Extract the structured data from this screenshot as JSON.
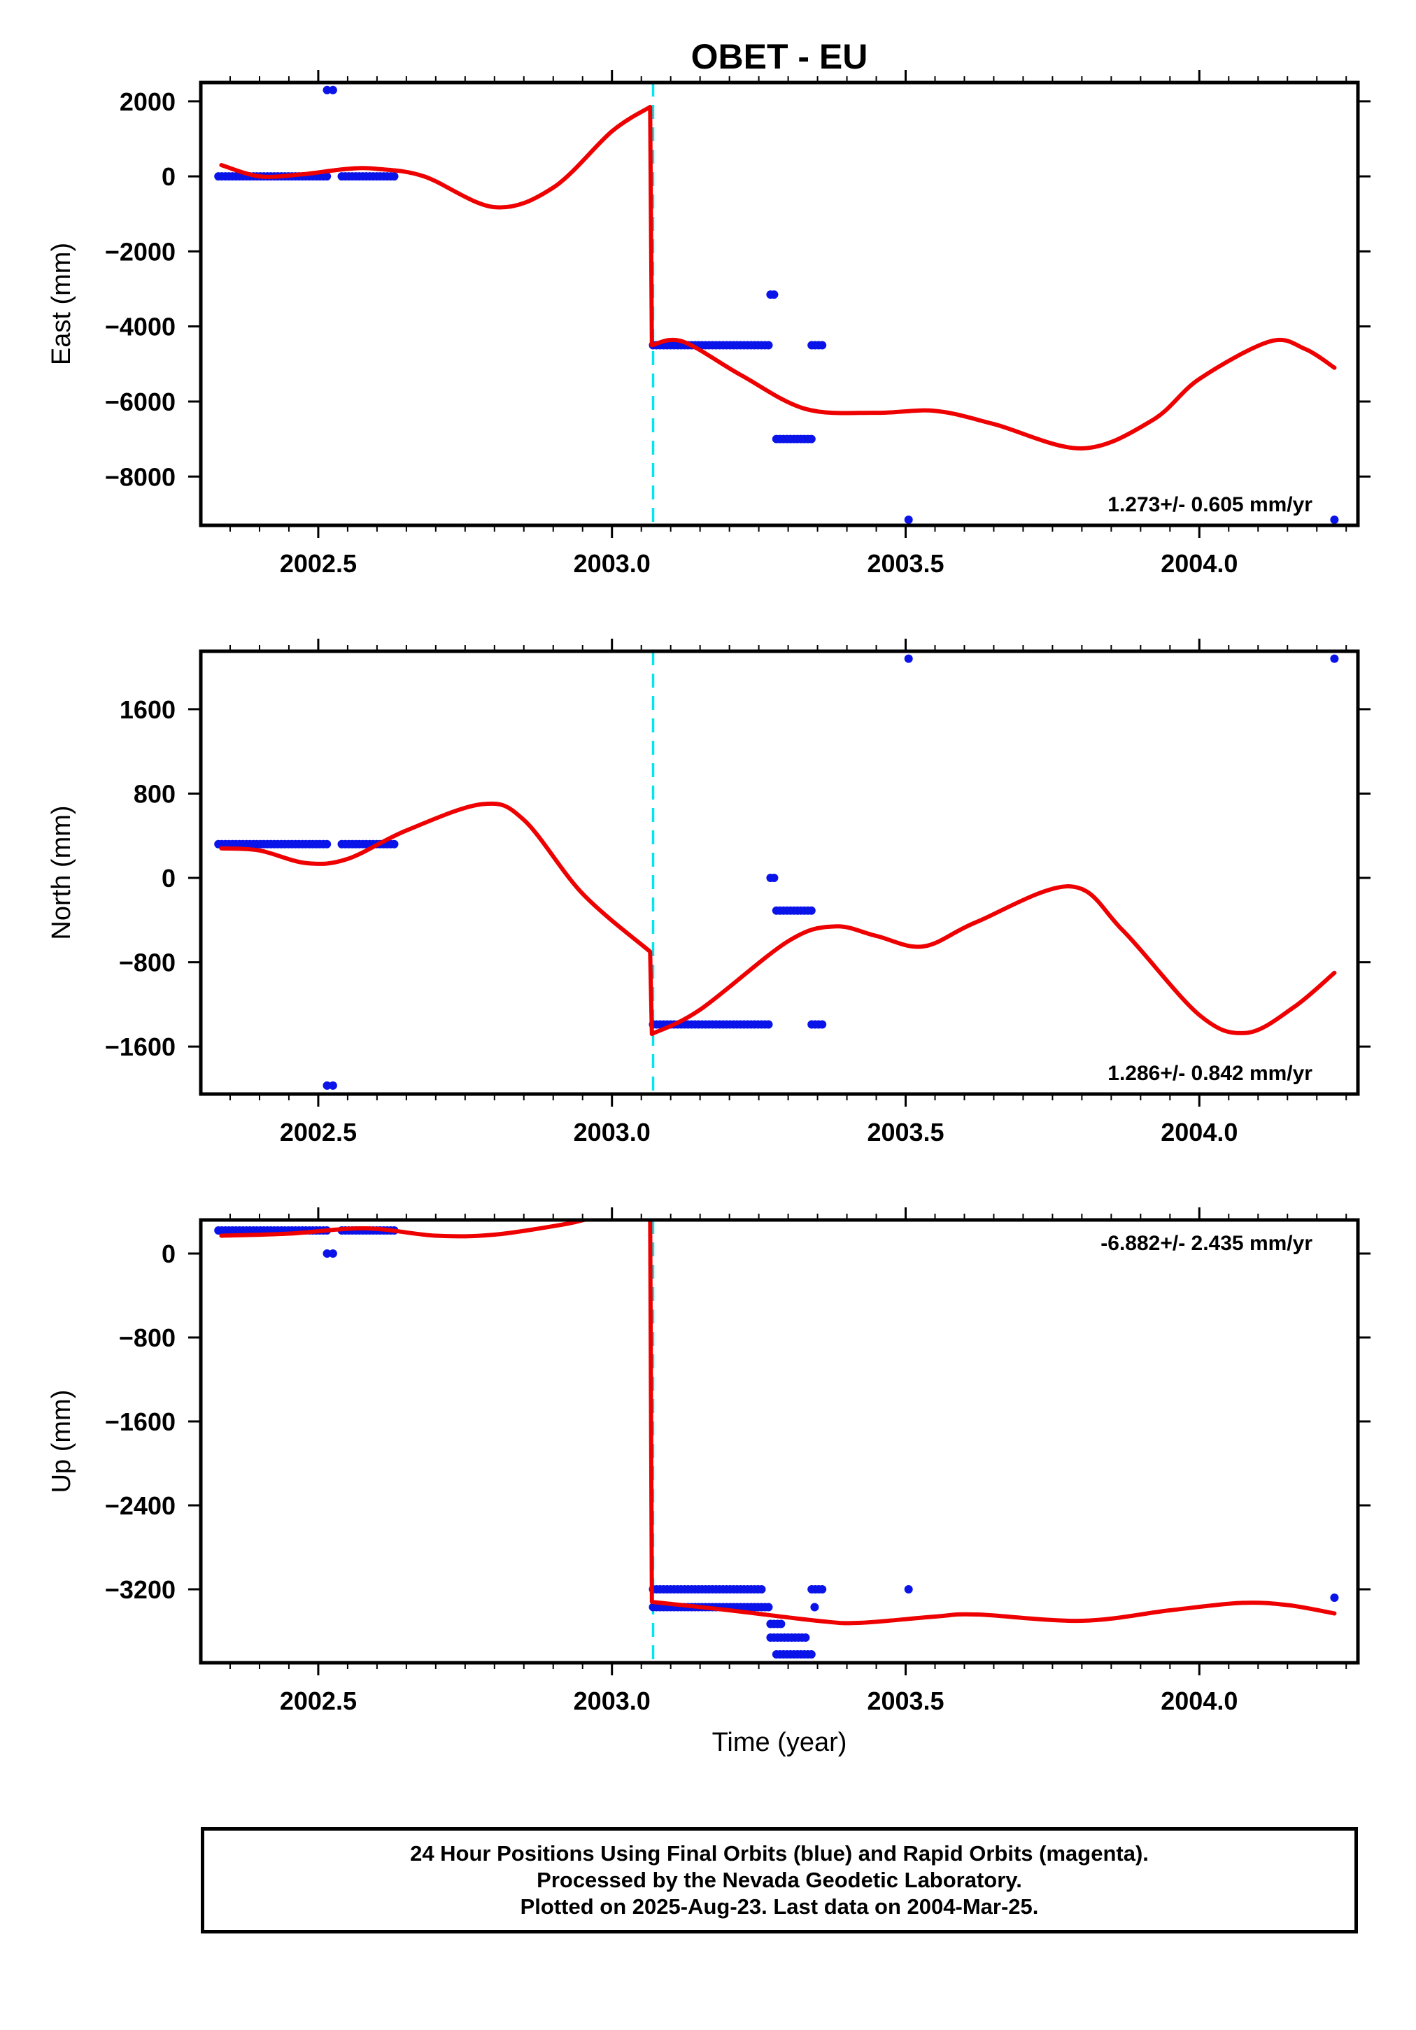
{
  "title": "OBET - EU",
  "colors": {
    "final": "#0a14e8",
    "model": "#ee0000",
    "offset": "#00e5ee",
    "frame": "#000000"
  },
  "xlabel": "Time (year)",
  "chart_data": [
    {
      "type": "scatter",
      "ylabel": "East (mm)",
      "xlim": [
        2002.3,
        2004.27
      ],
      "ylim": [
        -9300,
        2500
      ],
      "x_ticks": [
        2002.5,
        2003.0,
        2003.5,
        2004.0
      ],
      "x_tick_labels": [
        "2002.5",
        "2003.0",
        "2003.5",
        "2004.0"
      ],
      "y_ticks": [
        2000,
        0,
        -2000,
        -4000,
        -6000,
        -8000
      ],
      "y_tick_labels": [
        "2000",
        "0",
        "−2000",
        "−4000",
        "−6000",
        "−8000"
      ],
      "rate_text": "1.273+/- 0.605 mm/yr",
      "rate_position": "bottom-right",
      "offset_epoch": 2003.07,
      "series": [
        {
          "role": "final-orbit-positions",
          "marker": "dot",
          "clusters": [
            {
              "x_range": [
                2002.33,
                2002.52
              ],
              "y": 0
            },
            {
              "x_range": [
                2002.54,
                2002.63
              ],
              "y": 0
            },
            {
              "x_range": [
                2003.07,
                2003.27
              ],
              "y": -4500
            },
            {
              "x_range": [
                2003.34,
                2003.36
              ],
              "y": -4500
            },
            {
              "x_range": [
                2003.28,
                2003.34
              ],
              "y": -7000
            },
            {
              "x_range": [
                2003.27,
                2003.28
              ],
              "y": -3150
            }
          ],
          "points": [
            [
              2002.515,
              2300
            ],
            [
              2002.525,
              2300
            ],
            [
              2003.505,
              -9150
            ],
            [
              2004.23,
              -9150
            ]
          ]
        },
        {
          "role": "model-fit",
          "kind": "line",
          "points": [
            [
              2002.335,
              300
            ],
            [
              2002.4,
              0
            ],
            [
              2002.47,
              50
            ],
            [
              2002.55,
              200
            ],
            [
              2002.6,
              200
            ],
            [
              2002.68,
              0
            ],
            [
              2002.8,
              -820
            ],
            [
              2002.9,
              -300
            ],
            [
              2003.0,
              1200
            ],
            [
              2003.065,
              1850
            ],
            [
              2003.068,
              -4500
            ],
            [
              2003.12,
              -4400
            ],
            [
              2003.22,
              -5300
            ],
            [
              2003.33,
              -6200
            ],
            [
              2003.45,
              -6300
            ],
            [
              2003.55,
              -6250
            ],
            [
              2003.65,
              -6600
            ],
            [
              2003.8,
              -7250
            ],
            [
              2003.92,
              -6500
            ],
            [
              2004.0,
              -5400
            ],
            [
              2004.12,
              -4400
            ],
            [
              2004.18,
              -4600
            ],
            [
              2004.23,
              -5100
            ]
          ]
        }
      ]
    },
    {
      "type": "scatter",
      "ylabel": "North (mm)",
      "xlim": [
        2002.3,
        2004.27
      ],
      "ylim": [
        -2050,
        2150
      ],
      "x_ticks": [
        2002.5,
        2003.0,
        2003.5,
        2004.0
      ],
      "x_tick_labels": [
        "2002.5",
        "2003.0",
        "2003.5",
        "2004.0"
      ],
      "y_ticks": [
        1600,
        800,
        0,
        -800,
        -1600
      ],
      "y_tick_labels": [
        "1600",
        "800",
        "0",
        "−800",
        "−1600"
      ],
      "rate_text": "1.286+/- 0.842 mm/yr",
      "rate_position": "bottom-right",
      "offset_epoch": 2003.07,
      "series": [
        {
          "role": "final-orbit-positions",
          "marker": "dot",
          "clusters": [
            {
              "x_range": [
                2002.33,
                2002.52
              ],
              "y": 320
            },
            {
              "x_range": [
                2002.54,
                2002.63
              ],
              "y": 320
            },
            {
              "x_range": [
                2003.07,
                2003.27
              ],
              "y": -1390
            },
            {
              "x_range": [
                2003.34,
                2003.36
              ],
              "y": -1390
            },
            {
              "x_range": [
                2003.28,
                2003.34
              ],
              "y": -310
            },
            {
              "x_range": [
                2003.27,
                2003.28
              ],
              "y": 0
            }
          ],
          "points": [
            [
              2002.515,
              -1970
            ],
            [
              2002.525,
              -1970
            ],
            [
              2003.505,
              2080
            ],
            [
              2004.23,
              2080
            ]
          ]
        },
        {
          "role": "model-fit",
          "kind": "line",
          "points": [
            [
              2002.335,
              280
            ],
            [
              2002.4,
              260
            ],
            [
              2002.48,
              140
            ],
            [
              2002.55,
              180
            ],
            [
              2002.65,
              450
            ],
            [
              2002.78,
              700
            ],
            [
              2002.85,
              550
            ],
            [
              2002.95,
              -150
            ],
            [
              2003.065,
              -700
            ],
            [
              2003.068,
              -1480
            ],
            [
              2003.15,
              -1250
            ],
            [
              2003.3,
              -600
            ],
            [
              2003.38,
              -460
            ],
            [
              2003.45,
              -550
            ],
            [
              2003.53,
              -650
            ],
            [
              2003.62,
              -420
            ],
            [
              2003.78,
              -80
            ],
            [
              2003.87,
              -500
            ],
            [
              2004.0,
              -1300
            ],
            [
              2004.08,
              -1470
            ],
            [
              2004.16,
              -1230
            ],
            [
              2004.23,
              -900
            ]
          ]
        }
      ]
    },
    {
      "type": "scatter",
      "ylabel": "Up (mm)",
      "xlim": [
        2002.3,
        2004.27
      ],
      "ylim": [
        -3900,
        320
      ],
      "x_ticks": [
        2002.5,
        2003.0,
        2003.5,
        2004.0
      ],
      "x_tick_labels": [
        "2002.5",
        "2003.0",
        "2003.5",
        "2004.0"
      ],
      "y_ticks": [
        0,
        -800,
        -1600,
        -2400,
        -3200
      ],
      "y_tick_labels": [
        "0",
        "−800",
        "−1600",
        "−2400",
        "−3200"
      ],
      "rate_text": "-6.882+/- 2.435 mm/yr",
      "rate_position": "top-right",
      "offset_epoch": 2003.07,
      "series": [
        {
          "role": "final-orbit-positions",
          "marker": "dot",
          "clusters": [
            {
              "x_range": [
                2002.33,
                2002.52
              ],
              "y": 220
            },
            {
              "x_range": [
                2002.54,
                2002.63
              ],
              "y": 220
            },
            {
              "x_range": [
                2003.07,
                2003.26
              ],
              "y": -3200
            },
            {
              "x_range": [
                2003.07,
                2003.27
              ],
              "y": -3370
            },
            {
              "x_range": [
                2003.34,
                2003.36
              ],
              "y": -3200
            },
            {
              "x_range": [
                2003.27,
                2003.33
              ],
              "y": -3660
            },
            {
              "x_range": [
                2003.28,
                2003.34
              ],
              "y": -3820
            },
            {
              "x_range": [
                2003.27,
                2003.29
              ],
              "y": -3530
            }
          ],
          "points": [
            [
              2002.515,
              0
            ],
            [
              2002.525,
              0
            ],
            [
              2003.505,
              -3200
            ],
            [
              2004.23,
              -3280
            ],
            [
              2003.345,
              -3370
            ]
          ]
        },
        {
          "role": "model-fit",
          "kind": "line",
          "points": [
            [
              2002.335,
              170
            ],
            [
              2002.45,
              190
            ],
            [
              2002.58,
              240
            ],
            [
              2002.7,
              170
            ],
            [
              2002.8,
              180
            ],
            [
              2002.92,
              280
            ],
            [
              2002.97,
              340
            ],
            [
              2003.065,
              400
            ],
            [
              2003.068,
              -3320
            ],
            [
              2003.2,
              -3400
            ],
            [
              2003.35,
              -3500
            ],
            [
              2003.42,
              -3520
            ],
            [
              2003.55,
              -3460
            ],
            [
              2003.62,
              -3440
            ],
            [
              2003.8,
              -3500
            ],
            [
              2003.95,
              -3400
            ],
            [
              2004.07,
              -3330
            ],
            [
              2004.15,
              -3350
            ],
            [
              2004.23,
              -3430
            ]
          ]
        }
      ]
    }
  ],
  "footer": {
    "line1": "24 Hour Positions Using Final Orbits (blue) and Rapid Orbits (magenta).",
    "line2": "Processed by the Nevada Geodetic Laboratory.",
    "line3": "Plotted on 2025-Aug-23. Last data on 2004-Mar-25."
  }
}
